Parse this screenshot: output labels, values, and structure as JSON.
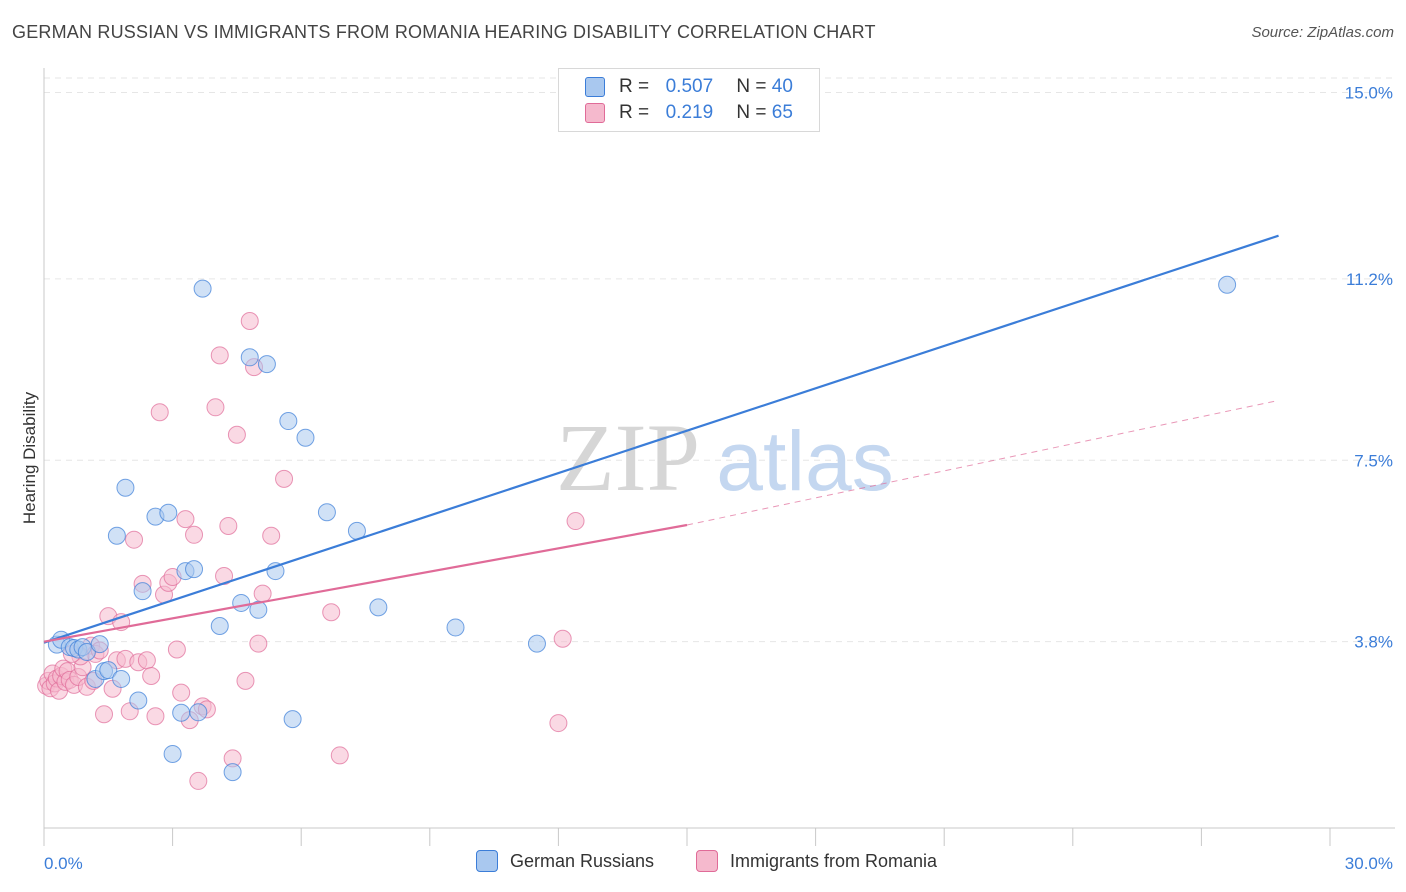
{
  "title": "GERMAN RUSSIAN VS IMMIGRANTS FROM ROMANIA HEARING DISABILITY CORRELATION CHART",
  "source": "Source: ZipAtlas.com",
  "watermark": {
    "zip": "ZIP",
    "atlas": "atlas"
  },
  "legend_top": [
    {
      "r_label": "R =",
      "r_value": "0.507",
      "n_label": "N =",
      "n_value": "40"
    },
    {
      "r_label": "R =",
      "r_value": "0.219",
      "n_label": "N =",
      "n_value": "65"
    }
  ],
  "legend_bottom": [
    {
      "label": "German Russians"
    },
    {
      "label": "Immigrants from Romania"
    }
  ],
  "colors": {
    "blue": "#3b7dd8",
    "blue_fill": "#a9c8ef",
    "pink": "#e06b98",
    "pink_fill": "#f5b9cd",
    "grid": "#e6e6e6",
    "axis_text": "#3b7dd8"
  },
  "chart_data": {
    "type": "scatter",
    "title": "GERMAN RUSSIAN VS IMMIGRANTS FROM ROMANIA HEARING DISABILITY CORRELATION CHART",
    "xlabel": "",
    "ylabel": "Hearing Disability",
    "xlim": [
      0,
      30
    ],
    "ylim": [
      0,
      15.5
    ],
    "y_ticks": [
      3.8,
      7.5,
      11.2,
      15.0
    ],
    "y_tick_labels": [
      "3.8%",
      "7.5%",
      "11.2%",
      "15.0%"
    ],
    "x_tick_labels": [
      "0.0%",
      "30.0%"
    ],
    "series": [
      {
        "name": "German Russians",
        "color": "#3b7dd8",
        "R": 0.507,
        "N": 40,
        "trend": {
          "x": [
            0.0,
            28.8
          ],
          "y": [
            3.78,
            12.08
          ]
        },
        "points": [
          [
            0.3,
            3.74
          ],
          [
            0.4,
            3.84
          ],
          [
            0.6,
            3.69
          ],
          [
            0.7,
            3.67
          ],
          [
            0.8,
            3.64
          ],
          [
            0.9,
            3.69
          ],
          [
            1.0,
            3.59
          ],
          [
            1.2,
            3.04
          ],
          [
            1.3,
            3.75
          ],
          [
            1.4,
            3.2
          ],
          [
            1.5,
            3.22
          ],
          [
            1.8,
            3.04
          ],
          [
            1.9,
            6.94
          ],
          [
            2.2,
            2.6
          ],
          [
            1.7,
            5.96
          ],
          [
            2.3,
            4.83
          ],
          [
            2.6,
            6.35
          ],
          [
            2.9,
            6.43
          ],
          [
            3.0,
            1.51
          ],
          [
            3.2,
            2.35
          ],
          [
            3.3,
            5.24
          ],
          [
            3.5,
            5.28
          ],
          [
            3.6,
            2.36
          ],
          [
            3.7,
            11.0
          ],
          [
            4.1,
            4.12
          ],
          [
            4.4,
            1.14
          ],
          [
            4.6,
            4.59
          ],
          [
            4.8,
            9.6
          ],
          [
            5.0,
            4.45
          ],
          [
            5.2,
            9.46
          ],
          [
            5.4,
            5.24
          ],
          [
            5.7,
            8.3
          ],
          [
            5.8,
            2.22
          ],
          [
            6.1,
            7.96
          ],
          [
            6.6,
            6.44
          ],
          [
            7.3,
            6.06
          ],
          [
            7.8,
            4.5
          ],
          [
            9.6,
            4.09
          ],
          [
            11.5,
            3.76
          ],
          [
            27.6,
            11.08
          ]
        ]
      },
      {
        "name": "Immigrants from Romania",
        "color": "#e06b98",
        "R": 0.219,
        "N": 65,
        "trend": {
          "x": [
            0.0,
            15.0
          ],
          "y": [
            3.8,
            6.18
          ]
        },
        "trend_ext": {
          "x": [
            15.0,
            28.8
          ],
          "y": [
            6.18,
            8.72
          ]
        },
        "points": [
          [
            0.05,
            2.9
          ],
          [
            0.1,
            3.0
          ],
          [
            0.15,
            2.85
          ],
          [
            0.2,
            3.15
          ],
          [
            0.25,
            2.95
          ],
          [
            0.3,
            3.05
          ],
          [
            0.35,
            2.8
          ],
          [
            0.4,
            3.1
          ],
          [
            0.45,
            3.25
          ],
          [
            0.5,
            2.98
          ],
          [
            0.55,
            3.2
          ],
          [
            0.6,
            3.02
          ],
          [
            0.7,
            2.92
          ],
          [
            0.8,
            3.08
          ],
          [
            0.9,
            3.28
          ],
          [
            1.0,
            2.88
          ],
          [
            1.1,
            3.72
          ],
          [
            1.2,
            3.55
          ],
          [
            1.3,
            3.62
          ],
          [
            1.4,
            2.32
          ],
          [
            1.5,
            4.32
          ],
          [
            1.6,
            2.84
          ],
          [
            1.7,
            3.42
          ],
          [
            1.8,
            4.2
          ],
          [
            1.9,
            3.45
          ],
          [
            2.0,
            2.38
          ],
          [
            2.1,
            5.88
          ],
          [
            2.2,
            3.38
          ],
          [
            2.3,
            4.98
          ],
          [
            2.4,
            3.42
          ],
          [
            2.5,
            3.1
          ],
          [
            2.6,
            2.28
          ],
          [
            2.7,
            8.48
          ],
          [
            2.8,
            4.76
          ],
          [
            2.9,
            5.0
          ],
          [
            3.0,
            5.12
          ],
          [
            3.1,
            3.64
          ],
          [
            3.2,
            2.76
          ],
          [
            3.3,
            6.3
          ],
          [
            3.4,
            2.2
          ],
          [
            3.5,
            5.98
          ],
          [
            3.6,
            0.96
          ],
          [
            3.7,
            2.48
          ],
          [
            3.8,
            2.42
          ],
          [
            4.0,
            8.58
          ],
          [
            4.1,
            9.64
          ],
          [
            4.2,
            5.14
          ],
          [
            4.3,
            6.16
          ],
          [
            4.4,
            1.42
          ],
          [
            4.5,
            8.02
          ],
          [
            4.7,
            3.0
          ],
          [
            4.8,
            10.34
          ],
          [
            4.9,
            9.4
          ],
          [
            5.0,
            3.76
          ],
          [
            5.1,
            4.78
          ],
          [
            5.3,
            5.96
          ],
          [
            5.6,
            7.12
          ],
          [
            6.7,
            4.4
          ],
          [
            6.9,
            1.48
          ],
          [
            12.0,
            2.14
          ],
          [
            12.1,
            3.86
          ],
          [
            12.4,
            6.26
          ],
          [
            1.15,
            3.0
          ],
          [
            0.85,
            3.5
          ],
          [
            0.65,
            3.55
          ]
        ]
      }
    ]
  }
}
